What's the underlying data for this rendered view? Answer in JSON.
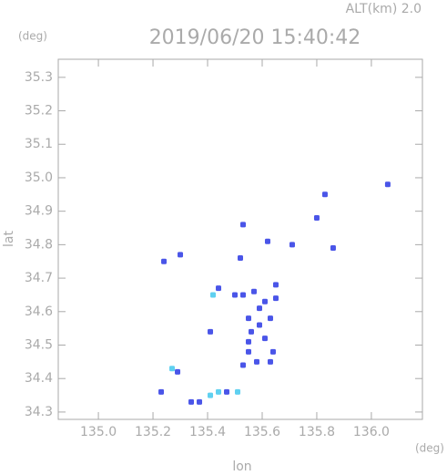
{
  "chart_data": {
    "type": "scatter",
    "title": "2019/06/20 15:40:42",
    "subtitle": "ALT(km) 2.0",
    "x_label": "lon",
    "y_label": "lat",
    "x_unit": "(deg)",
    "y_unit": "(deg)",
    "xlim": [
      134.853,
      136.187
    ],
    "ylim": [
      34.278,
      35.354
    ],
    "xticks": [
      {
        "value": 135,
        "label": "135.0"
      },
      135.2,
      135.4,
      135.6,
      135.8,
      {
        "value": 136,
        "label": "136.0"
      }
    ],
    "yticks": [
      34.3,
      34.4,
      34.5,
      34.6,
      34.7,
      34.8,
      34.9,
      {
        "value": 35,
        "label": "35.0"
      },
      35.1,
      35.2,
      35.3
    ],
    "series": [
      {
        "color": "#4a55e8",
        "x": [
          135.83,
          136.06,
          135.8,
          135.53,
          135.62,
          135.71,
          135.86,
          135.24,
          135.3,
          135.52,
          135.44,
          135.5,
          135.53,
          135.57,
          135.65,
          135.65,
          135.61,
          135.59,
          135.55,
          135.63,
          135.59,
          135.56,
          135.55,
          135.61,
          135.55,
          135.64,
          135.41,
          135.53,
          135.58,
          135.63,
          135.29,
          135.23,
          135.34,
          135.37,
          135.47
        ],
        "y": [
          34.95,
          34.98,
          34.88,
          34.86,
          34.81,
          34.8,
          34.79,
          34.75,
          34.77,
          34.76,
          34.67,
          34.65,
          34.65,
          34.66,
          34.68,
          34.64,
          34.63,
          34.61,
          34.58,
          34.58,
          34.56,
          34.54,
          34.51,
          34.52,
          34.48,
          34.48,
          34.54,
          34.44,
          34.45,
          34.45,
          34.42,
          34.36,
          34.33,
          34.33,
          34.36
        ]
      },
      {
        "color": "#5fd0f0",
        "x": [
          135.42,
          135.27,
          135.44,
          135.51,
          135.41
        ],
        "y": [
          34.65,
          34.43,
          34.36,
          34.36,
          34.35
        ]
      }
    ]
  }
}
